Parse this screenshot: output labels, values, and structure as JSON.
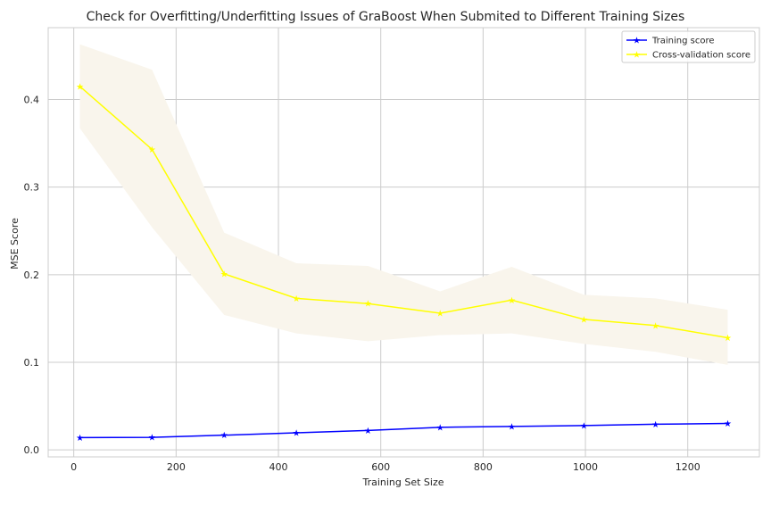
{
  "chart_data": {
    "type": "line",
    "title": "Check for Overfitting/Underfitting Issues of GraBoost When Submited to Different Training Sizes",
    "xlabel": "Training Set Size",
    "ylabel": "MSE Score",
    "xlim": [
      -50,
      1340
    ],
    "ylim": [
      -0.008,
      0.482
    ],
    "xticks": [
      0,
      200,
      400,
      600,
      800,
      1000,
      1200
    ],
    "yticks": [
      0.0,
      0.1,
      0.2,
      0.3,
      0.4
    ],
    "ytick_labels": [
      "0.0",
      "0.1",
      "0.2",
      "0.3",
      "0.4"
    ],
    "grid": true,
    "legend_position": "top-right",
    "x": [
      12,
      153,
      294,
      435,
      575,
      716,
      856,
      997,
      1137,
      1278
    ],
    "series": [
      {
        "name": "Training score",
        "color": "#0000ff",
        "marker": "star",
        "values": [
          0.014,
          0.0143,
          0.0168,
          0.0195,
          0.0222,
          0.0258,
          0.0268,
          0.0278,
          0.0293,
          0.0302
        ],
        "band_lower": [
          0.0135,
          0.0138,
          0.0163,
          0.019,
          0.0217,
          0.0253,
          0.0263,
          0.0273,
          0.0288,
          0.0297
        ],
        "band_upper": [
          0.0145,
          0.0148,
          0.0173,
          0.02,
          0.0227,
          0.0263,
          0.0273,
          0.0283,
          0.0298,
          0.0307
        ]
      },
      {
        "name": "Cross-validation score",
        "color": "#ffff00",
        "band_color": "#f9f5ec",
        "marker": "star",
        "values": [
          0.415,
          0.343,
          0.201,
          0.173,
          0.167,
          0.156,
          0.171,
          0.149,
          0.142,
          0.128
        ],
        "band_lower": [
          0.367,
          0.254,
          0.154,
          0.133,
          0.124,
          0.131,
          0.133,
          0.121,
          0.112,
          0.097
        ],
        "band_upper": [
          0.463,
          0.434,
          0.248,
          0.213,
          0.21,
          0.181,
          0.209,
          0.177,
          0.173,
          0.16
        ]
      }
    ]
  }
}
